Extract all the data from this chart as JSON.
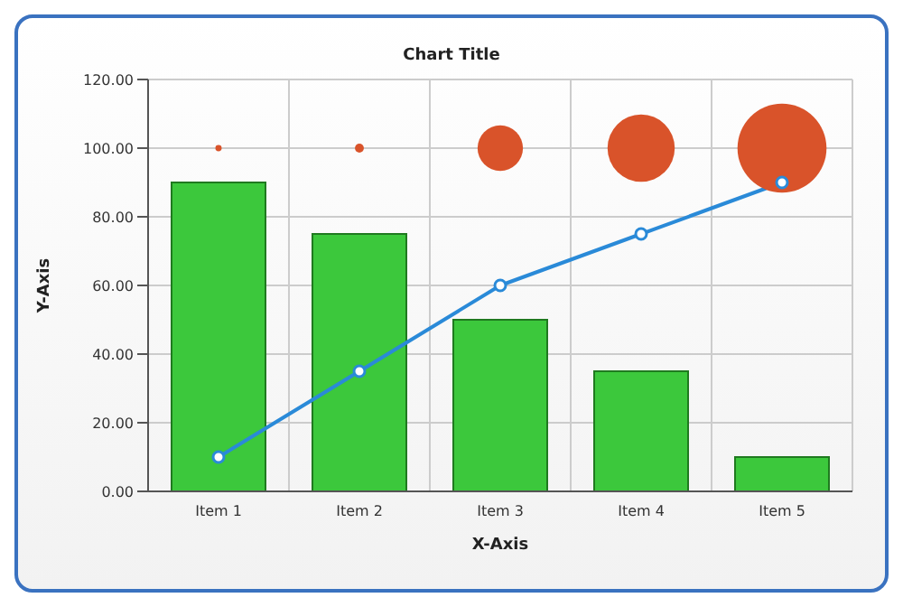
{
  "chart_data": {
    "type": "bar",
    "title": "Chart Title",
    "xlabel": "X-Axis",
    "ylabel": "Y-Axis",
    "categories": [
      "Item 1",
      "Item 2",
      "Item 3",
      "Item 4",
      "Item 5"
    ],
    "series": [
      {
        "color": "#3cc83c",
        "values": [
          90,
          75,
          50,
          35,
          10
        ]
      },
      {
        "type": "bubble",
        "color": "#d9532a",
        "values": [
          100,
          100,
          100,
          100,
          100
        ],
        "sizes": [
          0.005,
          0.01,
          0.26,
          0.57,
          1
        ]
      },
      {
        "type": "line",
        "color": "#2a8ad8",
        "values": [
          10,
          35,
          60,
          75,
          90
        ],
        "marker": "circle"
      }
    ],
    "ylim": [
      0,
      120
    ],
    "yticks": [
      {
        "value": 0,
        "label": "0.00"
      },
      {
        "value": 20,
        "label": "20.00"
      },
      {
        "value": 40,
        "label": "40.00"
      },
      {
        "value": 60,
        "label": "60.00"
      },
      {
        "value": 80,
        "label": "80.00"
      },
      {
        "value": 100,
        "label": "100.00"
      },
      {
        "value": 120,
        "label": "120.00"
      }
    ],
    "grid": true,
    "legend": false
  }
}
